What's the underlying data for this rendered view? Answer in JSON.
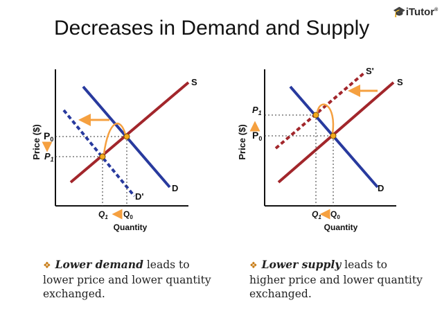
{
  "title": "Decreases in Demand and Supply",
  "logo": {
    "text": "iTutor",
    "mark": "®"
  },
  "colors": {
    "demand": "#283a9e",
    "supply": "#a2262b",
    "arrow": "#f5a040",
    "point": "#f4a91d",
    "axis": "#111111"
  },
  "left": {
    "ylabel": "Price ($)",
    "xlabel": "Quantity",
    "labels": {
      "S": "S",
      "D": "D",
      "Dp": "D'",
      "P0": "P",
      "P0sub": "0",
      "P1": "P",
      "P1sub": "1",
      "Q0": "Q",
      "Q0sub": "0",
      "Q1": "Q",
      "Q1sub": "1"
    },
    "caption": {
      "bold": "Lower demand",
      "rest": " leads to lower price and lower quantity exchanged."
    }
  },
  "right": {
    "ylabel": "Price ($)",
    "xlabel": "Quantity",
    "labels": {
      "S": "S",
      "Sp": "S'",
      "D": "D",
      "P0": "P",
      "P0sub": "0",
      "P1": "P",
      "P1sub": "1",
      "Q0": "Q",
      "Q0sub": "0",
      "Q1": "Q",
      "Q1sub": "1"
    },
    "caption": {
      "bold": "Lower supply",
      "rest": " leads to higher price and lower quantity exchanged."
    }
  }
}
